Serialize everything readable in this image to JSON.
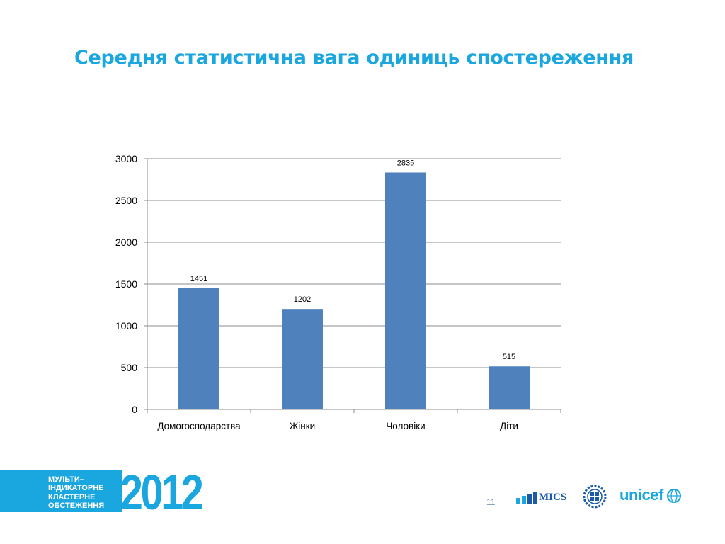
{
  "slide": {
    "title": "Середня статистична вага одиниць спостереження",
    "page_number": "11"
  },
  "footer": {
    "banner_lines": [
      "МУЛЬТИ–",
      "ІНДИКАТОРНЕ",
      "КЛАСТЕРНЕ",
      "ОБСТЕЖЕННЯ"
    ],
    "year": "2012",
    "logos": {
      "mics": "MICS",
      "unicef": "unicef"
    }
  },
  "colors": {
    "title": "#1aa6df",
    "bar": "#4f81bd",
    "grid": "#8c8c8c",
    "accent": "#1aa6df"
  },
  "chart_data": {
    "type": "bar",
    "title": "",
    "xlabel": "",
    "ylabel": "",
    "categories": [
      "Домогосподарства",
      "Жінки",
      "Чоловіки",
      "Діти"
    ],
    "values": [
      1451,
      1202,
      2835,
      515
    ],
    "data_labels": [
      "1451",
      "1202",
      "2835",
      "515"
    ],
    "ylim": [
      0,
      3000
    ],
    "yticks": [
      0,
      500,
      1000,
      1500,
      2000,
      2500,
      3000
    ],
    "grid": true,
    "legend": "none"
  }
}
